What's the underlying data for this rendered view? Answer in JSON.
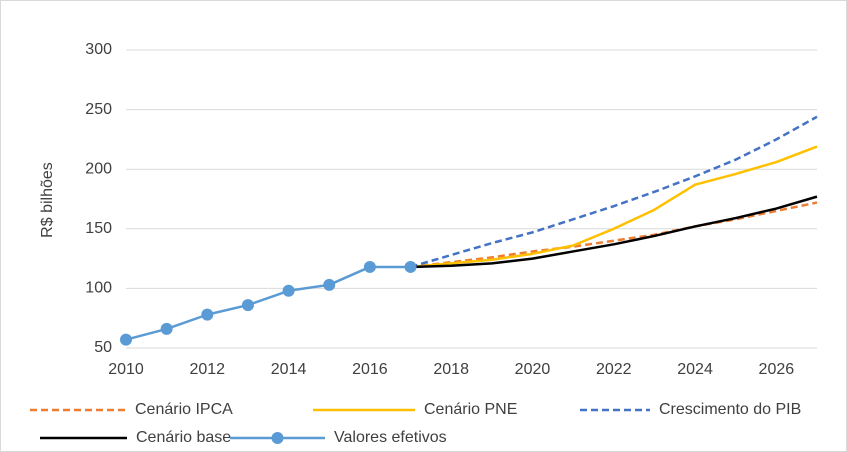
{
  "chart_data": {
    "type": "line",
    "y_label": "R$ bilhões",
    "xlim": [
      2010,
      2027
    ],
    "xticks": [
      2010,
      2012,
      2014,
      2016,
      2018,
      2020,
      2022,
      2024,
      2026
    ],
    "ylim": [
      50,
      300
    ],
    "yticks": [
      50,
      100,
      150,
      200,
      250,
      300
    ],
    "grid": true,
    "series": [
      {
        "name": "Cenário IPCA",
        "color": "#ED7D31",
        "dashed": true,
        "marker": false,
        "x": [
          2017,
          2018,
          2019,
          2020,
          2021,
          2022,
          2023,
          2024,
          2025,
          2026,
          2027
        ],
        "values": [
          118,
          122,
          126,
          131,
          135,
          140,
          145,
          152,
          158,
          165,
          172
        ]
      },
      {
        "name": "Cenário PNE",
        "color": "#FFC000",
        "dashed": false,
        "marker": false,
        "x": [
          2017,
          2018,
          2019,
          2020,
          2021,
          2022,
          2023,
          2024,
          2025,
          2026,
          2027
        ],
        "values": [
          118,
          121,
          124,
          129,
          136,
          150,
          166,
          187,
          196,
          206,
          219
        ]
      },
      {
        "name": "Crescimento do PIB",
        "color": "#4472C4",
        "dashed": true,
        "marker": false,
        "x": [
          2017,
          2018,
          2019,
          2020,
          2021,
          2022,
          2023,
          2024,
          2025,
          2026,
          2027
        ],
        "values": [
          118,
          128,
          138,
          147,
          158,
          169,
          181,
          194,
          208,
          225,
          244
        ]
      },
      {
        "name": "Cenário base",
        "color": "#000000",
        "dashed": false,
        "marker": false,
        "x": [
          2017,
          2018,
          2019,
          2020,
          2021,
          2022,
          2023,
          2024,
          2025,
          2026,
          2027
        ],
        "values": [
          118,
          119,
          121,
          125,
          131,
          137,
          144,
          152,
          159,
          167,
          177
        ]
      },
      {
        "name": "Valores efetivos",
        "color": "#5B9BD5",
        "dashed": false,
        "marker": true,
        "x": [
          2010,
          2011,
          2012,
          2013,
          2014,
          2015,
          2016,
          2017
        ],
        "values": [
          57,
          66,
          78,
          86,
          98,
          103,
          118,
          118
        ]
      }
    ]
  }
}
